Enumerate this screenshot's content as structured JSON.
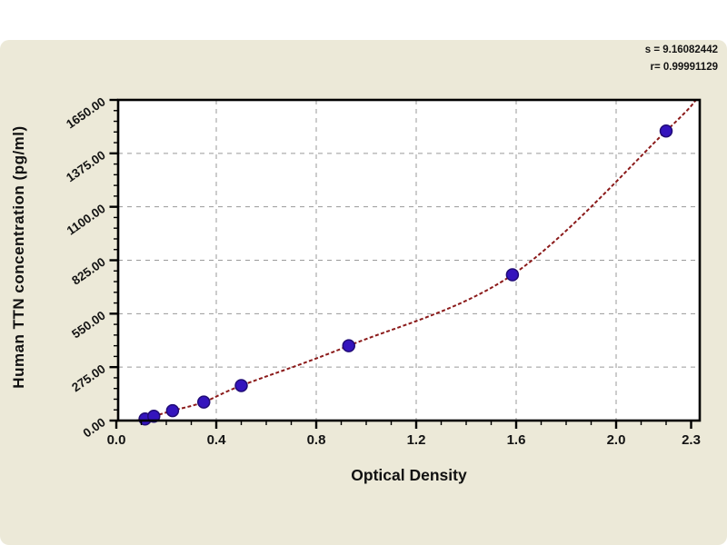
{
  "page": {
    "background_color": "#ffffff",
    "panel_color": "#ece9d8"
  },
  "chart_data": {
    "type": "scatter",
    "title": "",
    "xlabel": "Optical Density",
    "ylabel": "Human TTN concentration (pg/ml)",
    "xlim": [
      0,
      2.33
    ],
    "ylim": [
      0,
      1650
    ],
    "x_tick_values": [
      0,
      0.4,
      0.8,
      1.2,
      1.6,
      2.0,
      2.3
    ],
    "x_tick_labels": [
      "0.0",
      "0.4",
      "0.8",
      "1.2",
      "1.6",
      "2.0",
      "2.3"
    ],
    "y_tick_values": [
      0,
      275,
      550,
      825,
      1100,
      1375,
      1650
    ],
    "y_tick_labels": [
      "0.00",
      "275.00",
      "550.00",
      "825.00",
      "1100.00",
      "1375.00",
      "1650.00"
    ],
    "x_minor_step": 0.1,
    "y_minor_step": 55,
    "grid": {
      "style": "dashed",
      "x_values": [
        0.4,
        0.8,
        1.2,
        1.6,
        2.0
      ],
      "y_values": [
        275,
        550,
        825,
        1100,
        1375
      ]
    },
    "series": [
      {
        "name": "standard-points",
        "type": "scatter",
        "points": [
          [
            0.115,
            8
          ],
          [
            0.15,
            22
          ],
          [
            0.225,
            51
          ],
          [
            0.35,
            95
          ],
          [
            0.5,
            180
          ],
          [
            0.93,
            385
          ],
          [
            1.585,
            750
          ],
          [
            2.2,
            1490
          ]
        ]
      },
      {
        "name": "fitted-curve",
        "type": "line",
        "points": [
          [
            0.08,
            0
          ],
          [
            0.115,
            8
          ],
          [
            0.15,
            22
          ],
          [
            0.225,
            51
          ],
          [
            0.35,
            95
          ],
          [
            0.5,
            180
          ],
          [
            0.93,
            385
          ],
          [
            1.585,
            750
          ],
          [
            2.2,
            1490
          ],
          [
            2.32,
            1650
          ]
        ]
      }
    ],
    "annotations": [
      {
        "text": "s = 9.16082442"
      },
      {
        "text": "r= 0.99991129"
      }
    ],
    "legend": null,
    "colors": {
      "plot_bg": "#ffffff",
      "curve": "#8b1a1a",
      "point": "#3414bd",
      "point_edge": "#200b76",
      "grid": "#9a9a9a",
      "axis": "#000000"
    }
  }
}
